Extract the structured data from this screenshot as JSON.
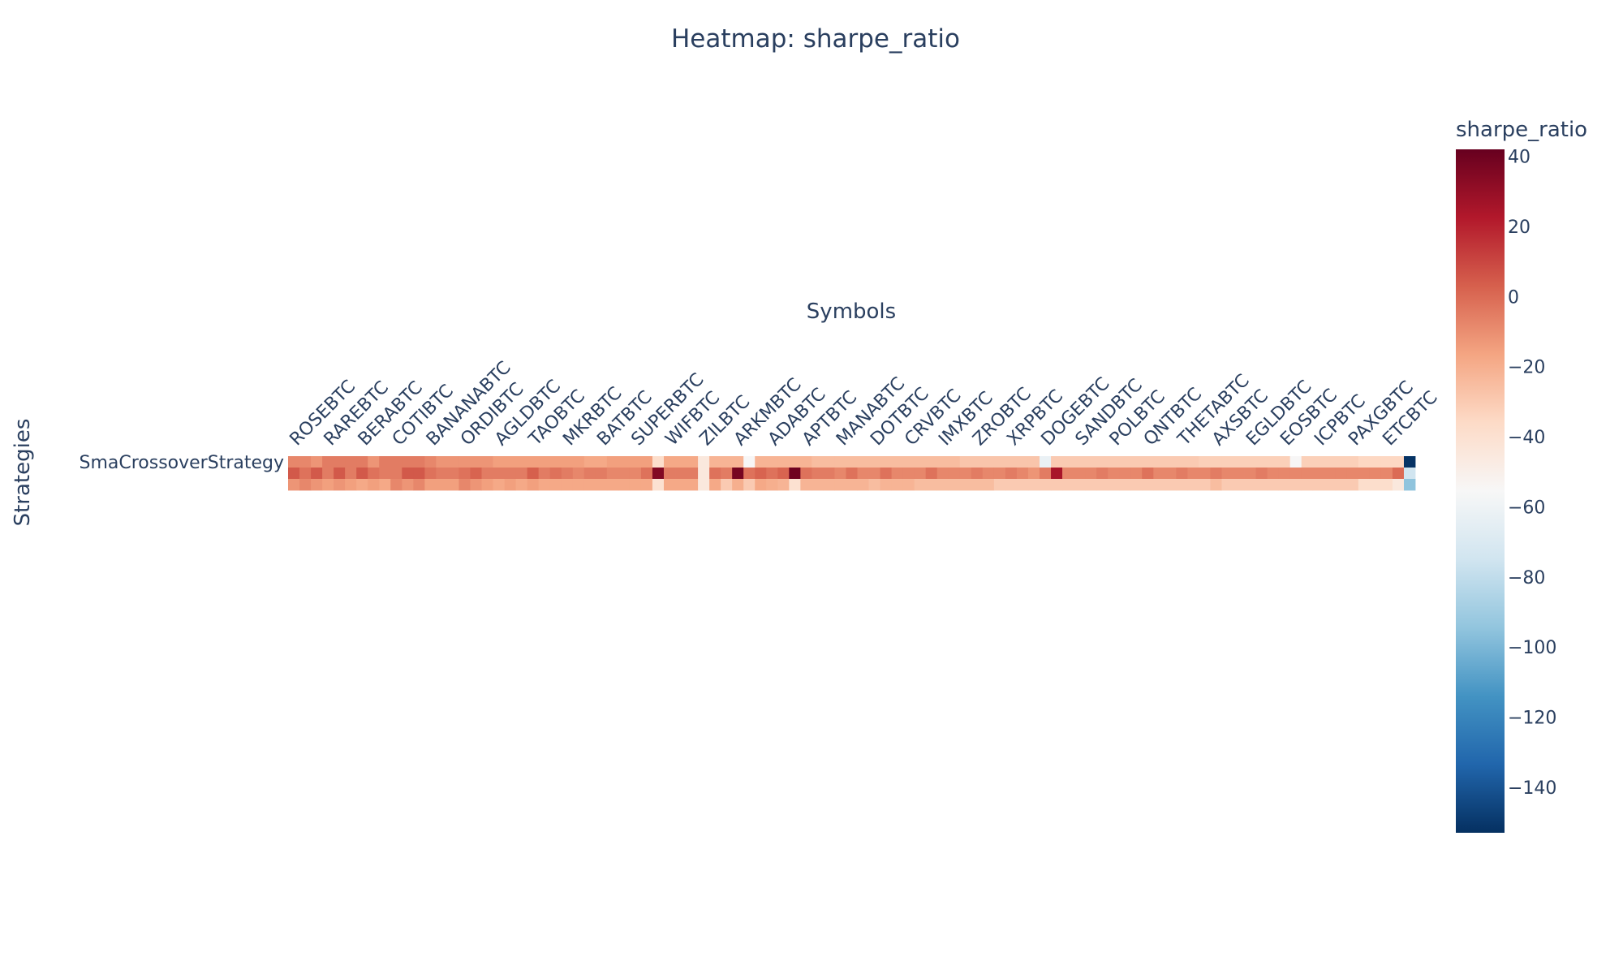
{
  "chart_data": {
    "type": "heatmap",
    "title": "Heatmap: sharpe_ratio",
    "xlabel": "Symbols",
    "ylabel": "Strategies",
    "row_labels": [
      "SmaCrossoverStrategy"
    ],
    "x_tick_labels": [
      "ROSEBTC",
      "RAREBTC",
      "BERABTC",
      "COTIBTC",
      "BANANABTC",
      "ORDIBTC",
      "AGLDBTC",
      "TAOBTC",
      "MKRBTC",
      "BATBTC",
      "SUPERBTC",
      "WIFBTC",
      "ZILBTC",
      "ARKMBTC",
      "ADABTC",
      "APTBTC",
      "MANABTC",
      "DOTBTC",
      "CRVBTC",
      "IMXBTC",
      "ZROBTC",
      "XRPBTC",
      "DOGEBTC",
      "SANDBTC",
      "POLBTC",
      "QNTBTC",
      "THETABTC",
      "AXSBTC",
      "EGLDBTC",
      "EOSBTC",
      "ICPBTC",
      "PAXGBTC",
      "ETCBTC"
    ],
    "columns_per_label": 3,
    "sub_rows": 3,
    "values": [
      [
        -8,
        -8,
        -12,
        -5,
        -5,
        -5,
        -5,
        -12,
        -5,
        -5,
        -5,
        -5,
        -8,
        -12,
        -12,
        -12,
        -12,
        -12,
        -15,
        -15,
        -15,
        -15,
        -15,
        -15,
        -15,
        -15,
        -18,
        -18,
        -15,
        -15,
        -15,
        -15,
        -38,
        -18,
        -18,
        -18,
        -45,
        -22,
        -22,
        -22,
        -55,
        -22,
        -22,
        -22,
        -22,
        -22,
        -25,
        -25,
        -25,
        -25,
        -25,
        -25,
        -25,
        -25,
        -25,
        -25,
        -25,
        -25,
        -25,
        -28,
        -28,
        -28,
        -28,
        -28,
        -28,
        -28,
        -62,
        -30,
        -30,
        -30,
        -30,
        -30,
        -30,
        -30,
        -30,
        -30,
        -30,
        -30,
        -30,
        -30,
        -32,
        -32,
        -32,
        -32,
        -32,
        -32,
        -32,
        -32,
        -55,
        -32,
        -32,
        -32,
        -32,
        -32,
        -35,
        -35,
        -35,
        -35,
        -152
      ],
      [
        5,
        -2,
        5,
        -5,
        5,
        -5,
        5,
        -2,
        -5,
        -5,
        5,
        5,
        -2,
        -5,
        -5,
        -2,
        2,
        -5,
        -5,
        -5,
        -5,
        3,
        -5,
        -2,
        -5,
        -8,
        -5,
        -5,
        -8,
        -8,
        -8,
        -2,
        35,
        -5,
        -5,
        -5,
        -45,
        -2,
        -5,
        38,
        -2,
        2,
        -2,
        2,
        40,
        -2,
        -5,
        -5,
        -8,
        -2,
        -8,
        -8,
        -2,
        -8,
        -8,
        -8,
        -2,
        -8,
        -8,
        -8,
        -5,
        -8,
        -8,
        -5,
        -8,
        -12,
        -5,
        25,
        -8,
        -8,
        -8,
        -5,
        -8,
        -8,
        -8,
        -2,
        -8,
        -8,
        -5,
        -8,
        -8,
        -5,
        -8,
        -8,
        -8,
        -5,
        -8,
        -8,
        -8,
        -8,
        -8,
        -8,
        -8,
        -8,
        -8,
        -8,
        -8,
        0,
        -75
      ],
      [
        -12,
        -8,
        -12,
        -15,
        -12,
        -15,
        -18,
        -15,
        -18,
        -8,
        -12,
        -8,
        -15,
        -15,
        -15,
        -8,
        -12,
        -15,
        -18,
        -15,
        -18,
        -15,
        -18,
        -18,
        -18,
        -18,
        -18,
        -18,
        -18,
        -18,
        -18,
        -18,
        -40,
        -18,
        -18,
        -18,
        -45,
        -18,
        -30,
        -20,
        -30,
        -18,
        -20,
        -22,
        -40,
        -22,
        -22,
        -22,
        -22,
        -22,
        -22,
        -25,
        -22,
        -22,
        -22,
        -25,
        -25,
        -25,
        -25,
        -25,
        -25,
        -25,
        -30,
        -30,
        -30,
        -30,
        -30,
        -30,
        -30,
        -30,
        -30,
        -30,
        -30,
        -30,
        -30,
        -30,
        -30,
        -30,
        -30,
        -30,
        -30,
        -25,
        -30,
        -30,
        -30,
        -30,
        -30,
        -30,
        -30,
        -30,
        -30,
        -30,
        -30,
        -30,
        -38,
        -38,
        -38,
        -45,
        -95
      ]
    ],
    "colorbar": {
      "title": "sharpe_ratio",
      "min": -153,
      "max": 42,
      "tick_values": [
        40,
        20,
        0,
        -20,
        -40,
        -60,
        -80,
        -100,
        -120,
        -140
      ],
      "tick_labels": [
        "40",
        "20",
        "0",
        "−20",
        "−40",
        "−60",
        "−80",
        "−100",
        "−120",
        "−140"
      ],
      "colorscale": [
        "#053061",
        "#2166ac",
        "#4393c3",
        "#92c5de",
        "#d1e5f0",
        "#f7f7f7",
        "#fddbc7",
        "#f4a582",
        "#d6604d",
        "#b2182b",
        "#67001f"
      ]
    }
  }
}
